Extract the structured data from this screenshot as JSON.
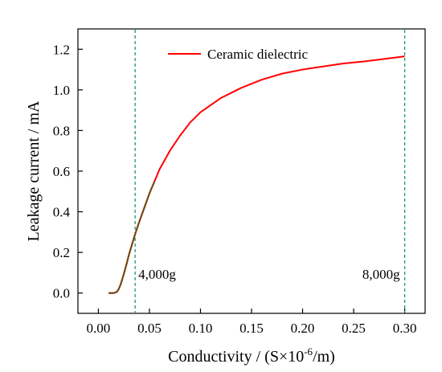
{
  "chart_data": {
    "type": "line",
    "title": "",
    "xlabel": "Conductivity / (S×10⁻⁶/m)",
    "xlabel_parts": {
      "prefix": "Conductivity / (S×10",
      "sup": "-6",
      "suffix": "/m)"
    },
    "ylabel": "Leakage current / mA",
    "xlim": [
      -0.02,
      0.32
    ],
    "ylim": [
      -0.1,
      1.3
    ],
    "xticks": [
      0.0,
      0.05,
      0.1,
      0.15,
      0.2,
      0.25,
      0.3
    ],
    "xtick_labels": [
      "0.00",
      "0.05",
      "0.10",
      "0.15",
      "0.20",
      "0.25",
      "0.30"
    ],
    "yticks": [
      0.0,
      0.2,
      0.4,
      0.6,
      0.8,
      1.0,
      1.2
    ],
    "ytick_labels": [
      "0.0",
      "0.2",
      "0.4",
      "0.6",
      "0.8",
      "1.0",
      "1.2"
    ],
    "grid": false,
    "legend_position": "top-center",
    "series": [
      {
        "name": "Ceramic dielectric",
        "color": "#ff0000",
        "overlay_color": "#6b4a12",
        "overlay_until_x": 0.055,
        "x": [
          0.01,
          0.015,
          0.018,
          0.02,
          0.022,
          0.025,
          0.028,
          0.03,
          0.033,
          0.036,
          0.04,
          0.045,
          0.05,
          0.055,
          0.06,
          0.07,
          0.08,
          0.09,
          0.1,
          0.12,
          0.14,
          0.16,
          0.18,
          0.2,
          0.22,
          0.24,
          0.26,
          0.28,
          0.3
        ],
        "y": [
          0.0,
          0.0,
          0.005,
          0.02,
          0.045,
          0.095,
          0.15,
          0.19,
          0.24,
          0.29,
          0.35,
          0.42,
          0.49,
          0.55,
          0.61,
          0.7,
          0.775,
          0.84,
          0.89,
          0.96,
          1.01,
          1.05,
          1.08,
          1.1,
          1.115,
          1.13,
          1.14,
          1.152,
          1.165
        ]
      }
    ],
    "vlines": [
      {
        "x": 0.036,
        "label": "4,000g",
        "color": "#1a9a6a"
      },
      {
        "x": 0.3,
        "label": "8,000g",
        "color": "#1a9a6a"
      }
    ]
  }
}
